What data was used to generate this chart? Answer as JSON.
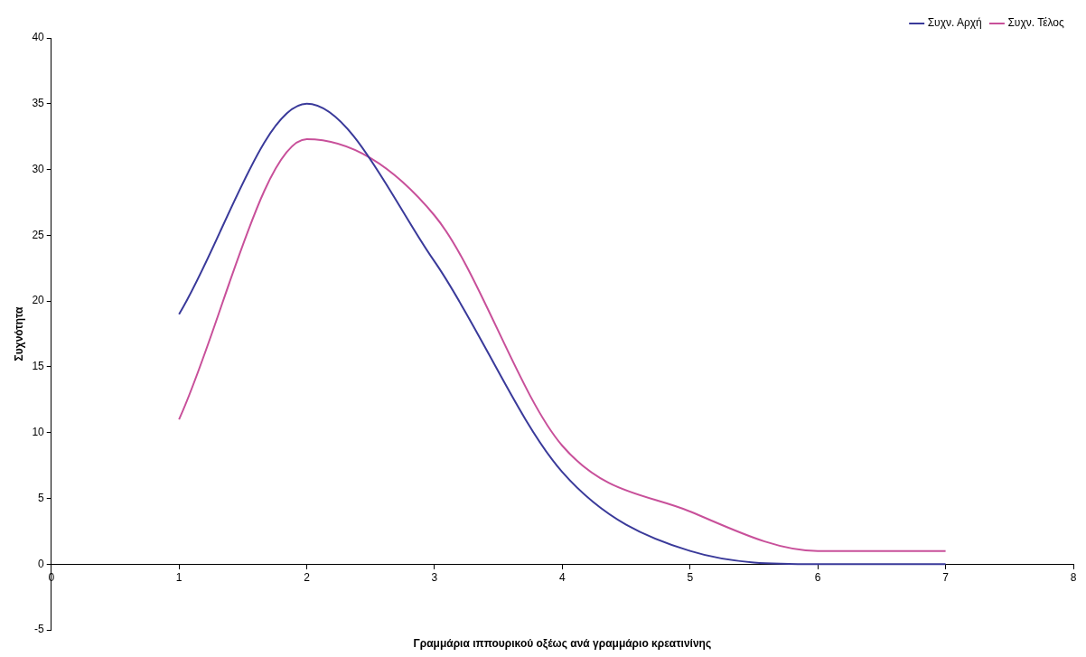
{
  "chart_data": {
    "type": "line",
    "xlabel": "Γραμμάρια ιππουρικού οξέως ανά γραμμάριο κρεατινίνης",
    "ylabel": "Συχνότητα",
    "x": [
      1,
      2,
      3,
      4,
      5,
      6,
      7
    ],
    "series": [
      {
        "name": "Συχν. Αρχή",
        "color": "#3a3a9a",
        "values": [
          19,
          35,
          23,
          7,
          1,
          0,
          0
        ]
      },
      {
        "name": "Συχν. Τέλος",
        "color": "#c8509a",
        "values": [
          11,
          32.3,
          26.5,
          9,
          4,
          1,
          1
        ]
      }
    ],
    "xlim": [
      0,
      8
    ],
    "xticks": [
      0,
      1,
      2,
      3,
      4,
      5,
      6,
      7,
      8
    ],
    "ylim": [
      -5,
      40
    ],
    "yticks": [
      -5,
      0,
      5,
      10,
      15,
      20,
      25,
      30,
      35,
      40
    ],
    "grid": false,
    "legend": "top right",
    "marker": "none",
    "line_style": "solid"
  }
}
